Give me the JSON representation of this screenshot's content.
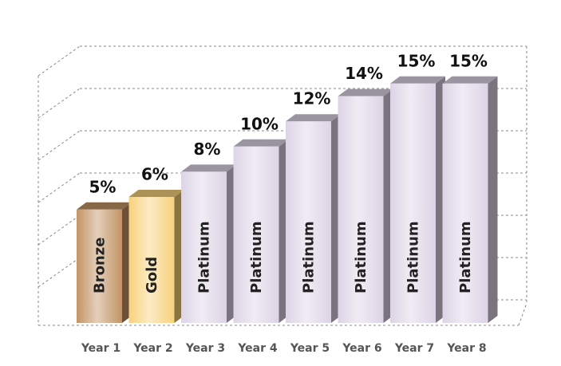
{
  "chart_data": {
    "type": "bar3d",
    "categories": [
      "Year 1",
      "Year 2",
      "Year 3",
      "Year 4",
      "Year 5",
      "Year 6",
      "Year 7",
      "Year 8"
    ],
    "values": [
      5,
      6,
      8,
      10,
      12,
      14,
      15,
      15
    ],
    "value_labels": [
      "5%",
      "6%",
      "8%",
      "10%",
      "12%",
      "14%",
      "15%",
      "15%"
    ],
    "bar_labels": [
      "Bronze",
      "Gold",
      "Platinum",
      "Platinum",
      "Platinum",
      "Platinum",
      "Platinum",
      "Platinum"
    ],
    "colors": [
      "#c39466",
      "#f7d27c",
      "#ddd4e6",
      "#ddd4e6",
      "#ddd4e6",
      "#ddd4e6",
      "#ddd4e6",
      "#ddd4e6"
    ],
    "ylim": [
      -4,
      16
    ]
  }
}
